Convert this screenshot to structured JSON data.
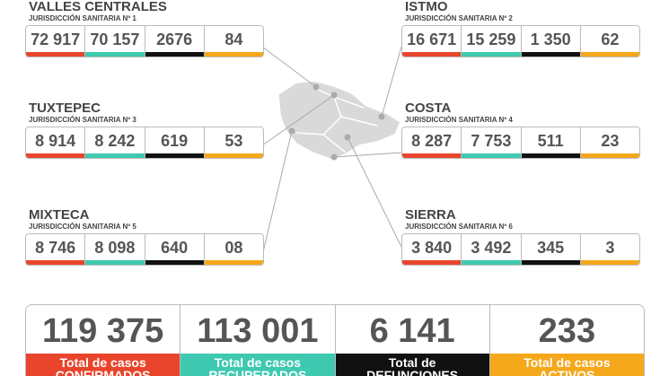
{
  "regions": [
    {
      "name": "VALLES CENTRALES",
      "jurisdiction": "JURISDICCIÓN SANITARIA Nº 1",
      "values": [
        "72 917",
        "70 157",
        "2676",
        "84"
      ]
    },
    {
      "name": "ISTMO",
      "jurisdiction": "JURISDICCIÓN SANITARIA Nº 2",
      "values": [
        "16 671",
        "15 259",
        "1 350",
        "62"
      ]
    },
    {
      "name": "TUXTEPEC",
      "jurisdiction": "JURISDICCIÓN SANITARIA Nº 3",
      "values": [
        "8 914",
        "8 242",
        "619",
        "53"
      ]
    },
    {
      "name": "COSTA",
      "jurisdiction": "JURISDICCIÓN SANITARIA Nº 4",
      "values": [
        "8 287",
        "7 753",
        "511",
        "23"
      ]
    },
    {
      "name": "MIXTECA",
      "jurisdiction": "JURISDICCIÓN SANITARIA Nº 5",
      "values": [
        "8 746",
        "8 098",
        "640",
        "08"
      ]
    },
    {
      "name": "SIERRA",
      "jurisdiction": "JURISDICCIÓN SANITARIA Nº 6",
      "values": [
        "3 840",
        "3 492",
        "345",
        "3"
      ]
    }
  ],
  "totals": [
    {
      "value": "119 375",
      "label": [
        "Total de casos",
        "CONFIRMADOS"
      ]
    },
    {
      "value": "113 001",
      "label": [
        "Total de casos",
        "RECUPERADOS"
      ]
    },
    {
      "value": "6 141",
      "label": [
        "Total de",
        "DEFUNCIONES"
      ]
    },
    {
      "value": "233",
      "label": [
        "Total de casos",
        "ACTIVOS"
      ]
    }
  ]
}
